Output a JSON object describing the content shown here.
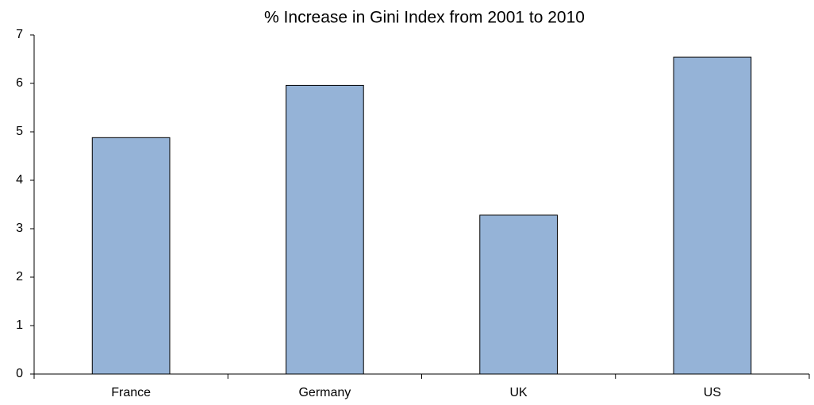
{
  "chart_data": {
    "type": "bar",
    "title": "% Increase in Gini Index from 2001 to 2010",
    "categories": [
      "France",
      "Germany",
      "UK",
      "US"
    ],
    "values": [
      4.88,
      5.96,
      3.28,
      6.54
    ],
    "color": "#95b3d7",
    "ylim": [
      0,
      7
    ],
    "yticks": [
      0,
      1,
      2,
      3,
      4,
      5,
      6,
      7
    ],
    "grid": false
  }
}
